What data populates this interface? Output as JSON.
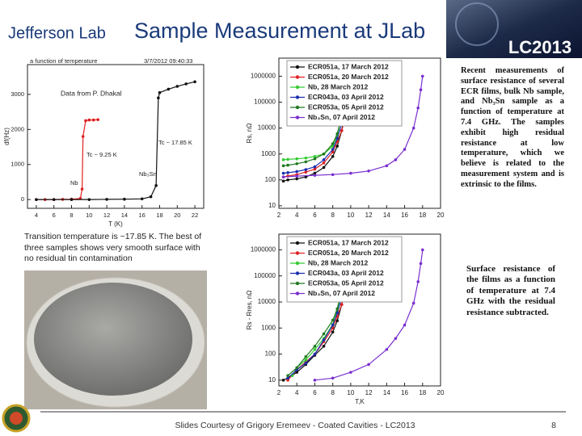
{
  "header": {
    "logo": "Jefferson Lab",
    "title": "Sample Measurement at JLab",
    "badge": "LC2013"
  },
  "chart_data": [
    {
      "type": "scatter",
      "title": "a function of temperature",
      "annotations": [
        "3/7/2012 09:40:33",
        "Data from P. Dhakal",
        "Tc ~ 9.25 K",
        "Tc ~ 17.85 K",
        "Nb",
        "Nb₃Sn"
      ],
      "x_label": "T (K)",
      "y_label": "df(Hz)",
      "xlim": [
        3,
        23
      ],
      "ylim": [
        -250,
        3850
      ],
      "xticks": [
        4,
        6,
        8,
        10,
        12,
        14,
        16,
        18,
        20,
        22
      ],
      "yticks": [
        0,
        1000,
        2000,
        3000
      ],
      "series": [
        {
          "color": "#e02020",
          "x": [
            4,
            5,
            6,
            7,
            8,
            9,
            9.2,
            9.3,
            9.6,
            10,
            10.5,
            11
          ],
          "values": [
            0,
            0,
            0,
            5,
            10,
            30,
            300,
            1800,
            2250,
            2270,
            2270,
            2280
          ]
        },
        {
          "color": "#111111",
          "x": [
            4,
            6,
            8,
            10,
            12,
            14,
            16,
            17,
            17.6,
            17.85,
            18,
            19,
            20,
            21,
            22
          ],
          "values": [
            0,
            0,
            0,
            0,
            5,
            10,
            20,
            80,
            400,
            2900,
            3050,
            3150,
            3230,
            3300,
            3360
          ]
        }
      ]
    },
    {
      "type": "scatter",
      "y_label": "Rs, nΩ",
      "y_log": true,
      "legend": "upper left",
      "xlim": [
        2,
        20
      ],
      "ylim": [
        8,
        5000000
      ],
      "xticks": [
        2,
        4,
        6,
        8,
        10,
        12,
        14,
        16,
        18,
        20
      ],
      "yticks": [
        10,
        100,
        1000,
        10000,
        100000,
        1000000
      ],
      "series": [
        {
          "name": "ECR051a, 17 March 2012",
          "color": "#111111",
          "x": [
            2.5,
            3,
            4,
            5,
            6,
            7,
            8,
            8.5,
            9,
            9.3,
            9.6,
            9.8
          ],
          "values": [
            90,
            100,
            110,
            130,
            180,
            300,
            800,
            2000,
            8000,
            40000,
            300000,
            1000000
          ]
        },
        {
          "name": "ECR051a, 20 March 2012",
          "color": "#e02020",
          "x": [
            2.5,
            3,
            4,
            5,
            6,
            7,
            8,
            8.5,
            9,
            9.3
          ],
          "values": [
            130,
            140,
            160,
            200,
            260,
            450,
            1200,
            3000,
            8000,
            20000
          ]
        },
        {
          "name": "Nb, 28 March 2012",
          "color": "#33cc33",
          "x": [
            2.5,
            3,
            4,
            5,
            6,
            7,
            8,
            8.5,
            9,
            9.2,
            9.3
          ],
          "values": [
            600,
            620,
            650,
            700,
            800,
            1000,
            2000,
            5000,
            30000,
            200000,
            1000000
          ]
        },
        {
          "name": "ECR043a, 03 April 2012",
          "color": "#1a2fb0",
          "x": [
            2.5,
            3,
            4,
            5,
            6,
            7,
            8,
            8.5,
            9,
            9.2
          ],
          "values": [
            180,
            190,
            210,
            250,
            320,
            600,
            1500,
            4000,
            15000,
            40000
          ]
        },
        {
          "name": "ECR053a, 05 April 2012",
          "color": "#1f7a1f",
          "x": [
            2.5,
            3,
            4,
            5,
            6,
            7,
            8,
            8.5,
            9,
            9.3,
            9.5
          ],
          "values": [
            350,
            370,
            420,
            500,
            650,
            1000,
            2500,
            6000,
            30000,
            200000,
            700000
          ]
        },
        {
          "name": "Nb₃Sn, 07 April 2012",
          "color": "#7a2fd0",
          "x": [
            2.5,
            4,
            6,
            8,
            10,
            12,
            14,
            15,
            16,
            17,
            17.5,
            17.8,
            18
          ],
          "values": [
            130,
            140,
            150,
            160,
            180,
            220,
            350,
            600,
            1500,
            10000,
            60000,
            300000,
            1000000
          ]
        }
      ]
    },
    {
      "type": "scatter",
      "x_label": "T,K",
      "y_label": "Rs - Rres, nΩ",
      "y_log": true,
      "legend": "upper left",
      "xlim": [
        2,
        20
      ],
      "ylim": [
        6,
        4000000
      ],
      "xticks": [
        2,
        4,
        6,
        8,
        10,
        12,
        14,
        16,
        18,
        20
      ],
      "yticks": [
        10,
        100,
        1000,
        10000,
        100000,
        1000000
      ],
      "series": [
        {
          "name": "ECR051a, 17 March 2012",
          "color": "#111111",
          "x": [
            2.5,
            3,
            4,
            5,
            6,
            7,
            8,
            8.5,
            9,
            9.3,
            9.6
          ],
          "values": [
            10,
            12,
            20,
            40,
            90,
            200,
            700,
            1900,
            8000,
            40000,
            300000
          ]
        },
        {
          "name": "ECR051a, 20 March 2012",
          "color": "#e02020",
          "x": [
            3,
            4,
            5,
            6,
            7,
            8,
            8.5,
            9,
            9.3
          ],
          "values": [
            10,
            25,
            50,
            100,
            300,
            1000,
            2800,
            8000,
            20000
          ]
        },
        {
          "name": "Nb, 28 March 2012",
          "color": "#33cc33",
          "x": [
            3.5,
            4,
            5,
            6,
            7,
            8,
            8.5,
            9,
            9.2
          ],
          "values": [
            15,
            30,
            60,
            150,
            400,
            1400,
            4500,
            30000,
            200000
          ]
        },
        {
          "name": "ECR043a, 03 April 2012",
          "color": "#1a2fb0",
          "x": [
            3,
            4,
            5,
            6,
            7,
            8,
            8.5,
            9
          ],
          "values": [
            12,
            25,
            45,
            100,
            350,
            1300,
            3800,
            15000
          ]
        },
        {
          "name": "ECR053a, 05 April 2012",
          "color": "#1f7a1f",
          "x": [
            3,
            4,
            5,
            6,
            7,
            8,
            8.5,
            9,
            9.3
          ],
          "values": [
            15,
            30,
            80,
            200,
            600,
            2000,
            5500,
            30000,
            200000
          ]
        },
        {
          "name": "Nb₃Sn, 07 April 2012",
          "color": "#7a2fd0",
          "x": [
            6,
            8,
            10,
            12,
            14,
            15,
            16,
            17,
            17.5,
            17.8,
            18
          ],
          "values": [
            10,
            12,
            20,
            40,
            150,
            400,
            1300,
            9000,
            60000,
            300000,
            1000000
          ]
        }
      ]
    }
  ],
  "caption": "Transition temperature is ~17.85 K. The best of three samples shows very smooth surface with no residual tin contamination",
  "notes": [
    "Recent measurements of surface resistance of several ECR films, bulk Nb sample, and Nb₃Sn sample as a function of temperature at 7.4 GHz. The samples exhibit high residual resistance at low temperature, which we believe is related to the measurement system and is extrinsic to the films.",
    "Surface resistance of the films as a function of temperature at 7.4 GHz with the residual resistance subtracted."
  ],
  "footer": {
    "credit": "Slides Courtesy of Grigory Eremeev - Coated Cavities - LC2013",
    "page": 8
  }
}
